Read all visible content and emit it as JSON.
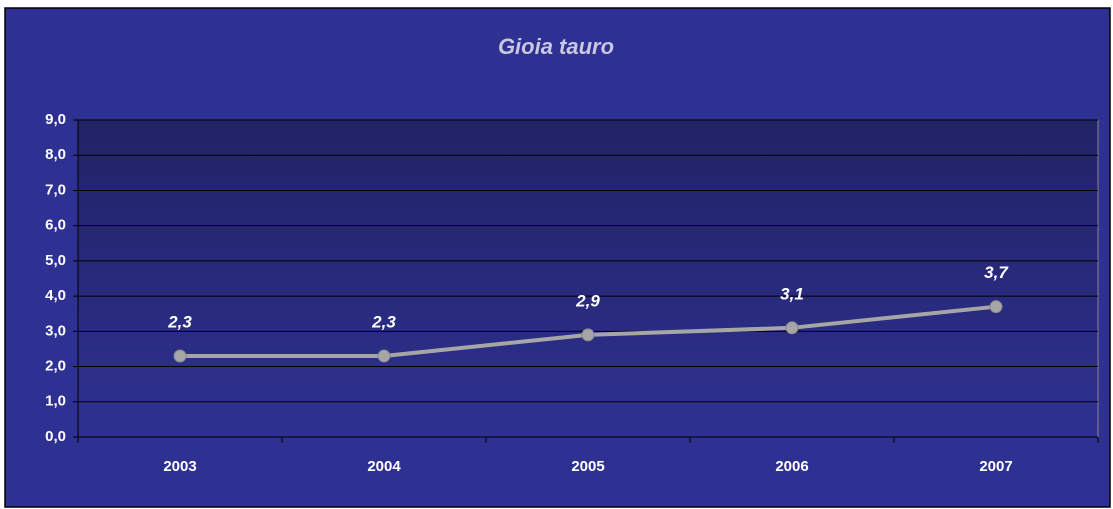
{
  "chart_data": {
    "type": "line",
    "title": "Gioia tauro",
    "categories": [
      "2003",
      "2004",
      "2005",
      "2006",
      "2007"
    ],
    "series": [
      {
        "name": null,
        "color": "#a6a6a6",
        "values": [
          2.3,
          2.3,
          2.9,
          3.1,
          3.7
        ],
        "value_labels": [
          "2,3",
          "2,3",
          "2,9",
          "3,1",
          "3,7"
        ]
      }
    ],
    "ylim": [
      0,
      9
    ],
    "yticks": [
      {
        "value": 0,
        "label": "0,0"
      },
      {
        "value": 1,
        "label": "1,0"
      },
      {
        "value": 2,
        "label": "2,0"
      },
      {
        "value": 3,
        "label": "3,0"
      },
      {
        "value": 4,
        "label": "4,0"
      },
      {
        "value": 5,
        "label": "5,0"
      },
      {
        "value": 6,
        "label": "6,0"
      },
      {
        "value": 7,
        "label": "7,0"
      },
      {
        "value": 8,
        "label": "8,0"
      },
      {
        "value": 9,
        "label": "9,0"
      }
    ],
    "grid": true
  }
}
